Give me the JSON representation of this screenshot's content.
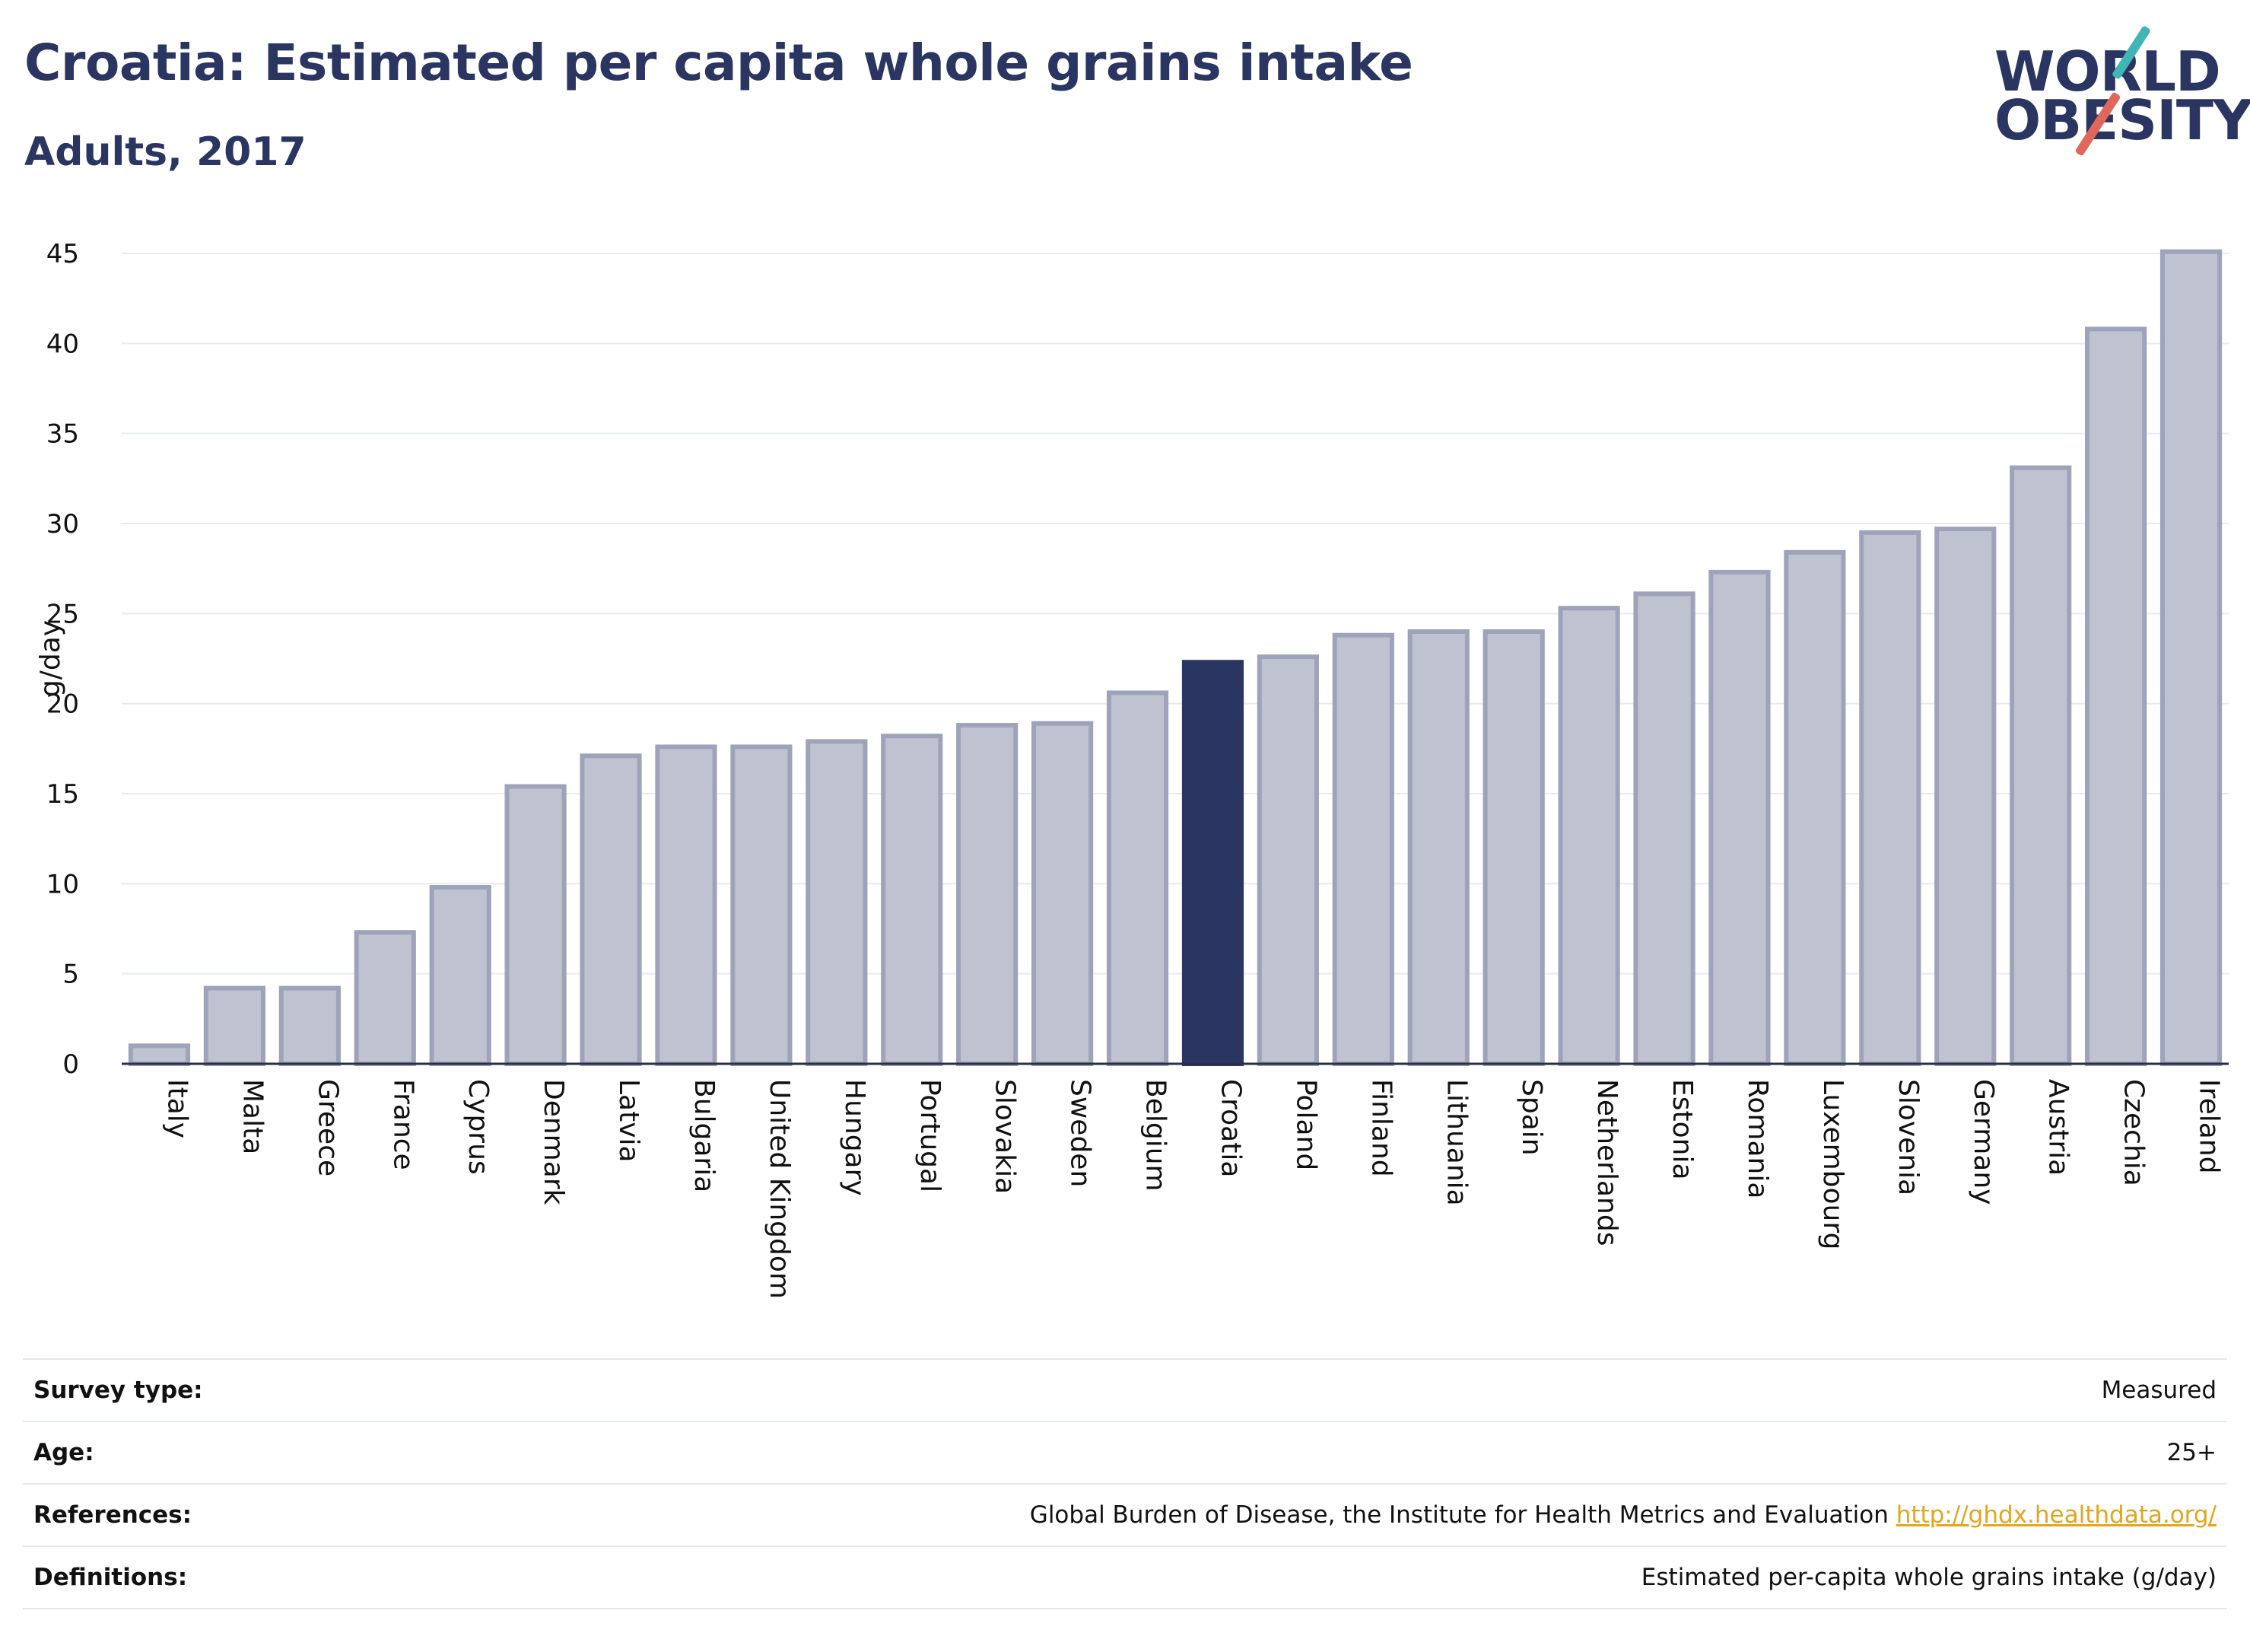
{
  "header": {
    "title": "Croatia: Estimated per capita whole grains intake",
    "subtitle": "Adults, 2017"
  },
  "logo": {
    "line1": "WORLD",
    "line2": "OBESITY"
  },
  "colors": {
    "highlight_bar": "#2a3561",
    "bar_fill": "#bfc3d1",
    "bar_stroke": "#9ea3ba",
    "axis_text": "#111111",
    "gridline": "#e8eaef"
  },
  "chart_data": {
    "type": "bar",
    "ylabel": "g/day",
    "ylim": [
      0,
      45
    ],
    "yticks": [
      0,
      5,
      10,
      15,
      20,
      25,
      30,
      35,
      40,
      45
    ],
    "grid": true,
    "highlight": "Croatia",
    "categories": [
      "Italy",
      "Malta",
      "Greece",
      "France",
      "Cyprus",
      "Denmark",
      "Latvia",
      "Bulgaria",
      "United Kingdom",
      "Hungary",
      "Portugal",
      "Slovakia",
      "Sweden",
      "Belgium",
      "Croatia",
      "Poland",
      "Finland",
      "Lithuania",
      "Spain",
      "Netherlands",
      "Estonia",
      "Romania",
      "Luxembourg",
      "Slovenia",
      "Germany",
      "Austria",
      "Czechia",
      "Ireland"
    ],
    "values": [
      1.0,
      4.2,
      4.2,
      7.3,
      9.8,
      15.4,
      17.1,
      17.6,
      17.6,
      17.9,
      18.2,
      18.8,
      18.9,
      20.6,
      22.3,
      22.6,
      23.8,
      24.0,
      24.0,
      25.3,
      26.1,
      27.3,
      28.4,
      29.5,
      29.7,
      33.1,
      40.8,
      45.1
    ]
  },
  "info": {
    "survey_type_label": "Survey type:",
    "survey_type_value": "Measured",
    "age_label": "Age:",
    "age_value": "25+",
    "references_label": "References:",
    "references_text": "Global Burden of Disease, the Institute for Health Metrics and Evaluation",
    "references_link": "http://ghdx.healthdata.org/",
    "definitions_label": "Definitions:",
    "definitions_value": "Estimated per-capita whole grains intake (g/day)"
  }
}
